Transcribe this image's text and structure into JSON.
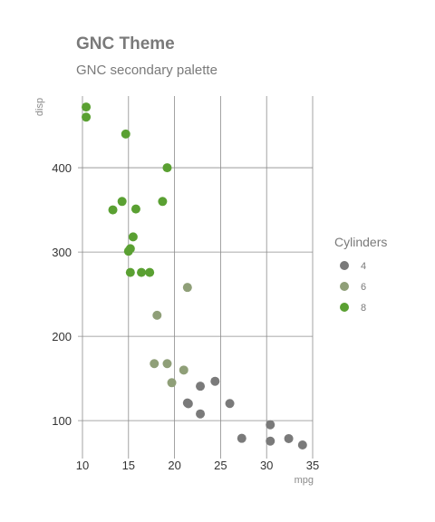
{
  "chart_data": {
    "type": "scatter",
    "title": "GNC Theme",
    "subtitle": "GNC secondary palette",
    "xlabel": "mpg",
    "ylabel": "disp",
    "xlim": [
      10,
      35
    ],
    "ylim": [
      55,
      485
    ],
    "xticks": [
      10,
      15,
      20,
      25,
      30,
      35
    ],
    "yticks": [
      100,
      200,
      300,
      400
    ],
    "grid": true,
    "legend": {
      "title": "Cylinders",
      "position": "right",
      "entries": [
        {
          "label": "4",
          "color": "#7a7a7a"
        },
        {
          "label": "6",
          "color": "#8f9f78"
        },
        {
          "label": "8",
          "color": "#5aa032"
        }
      ]
    },
    "series": [
      {
        "name": "4",
        "color": "#7a7a7a",
        "points": [
          {
            "x": 22.8,
            "y": 108
          },
          {
            "x": 24.4,
            "y": 146.7
          },
          {
            "x": 22.8,
            "y": 140.8
          },
          {
            "x": 32.4,
            "y": 78.7
          },
          {
            "x": 30.4,
            "y": 75.7
          },
          {
            "x": 33.9,
            "y": 71.1
          },
          {
            "x": 21.5,
            "y": 120.1
          },
          {
            "x": 27.3,
            "y": 79
          },
          {
            "x": 26.0,
            "y": 120.3
          },
          {
            "x": 30.4,
            "y": 95.1
          },
          {
            "x": 21.4,
            "y": 121
          }
        ]
      },
      {
        "name": "6",
        "color": "#8f9f78",
        "points": [
          {
            "x": 21.0,
            "y": 160
          },
          {
            "x": 21.4,
            "y": 258
          },
          {
            "x": 18.1,
            "y": 225
          },
          {
            "x": 19.2,
            "y": 167.6
          },
          {
            "x": 17.8,
            "y": 167.6
          },
          {
            "x": 19.7,
            "y": 145
          }
        ]
      },
      {
        "name": "8",
        "color": "#5aa032",
        "points": [
          {
            "x": 18.7,
            "y": 360
          },
          {
            "x": 14.3,
            "y": 360
          },
          {
            "x": 16.4,
            "y": 275.8
          },
          {
            "x": 17.3,
            "y": 275.8
          },
          {
            "x": 15.2,
            "y": 275.8
          },
          {
            "x": 10.4,
            "y": 472
          },
          {
            "x": 10.4,
            "y": 460
          },
          {
            "x": 14.7,
            "y": 440
          },
          {
            "x": 15.5,
            "y": 318
          },
          {
            "x": 15.2,
            "y": 304
          },
          {
            "x": 13.3,
            "y": 350
          },
          {
            "x": 19.2,
            "y": 400
          },
          {
            "x": 15.8,
            "y": 351
          },
          {
            "x": 15.0,
            "y": 301
          }
        ]
      }
    ]
  }
}
